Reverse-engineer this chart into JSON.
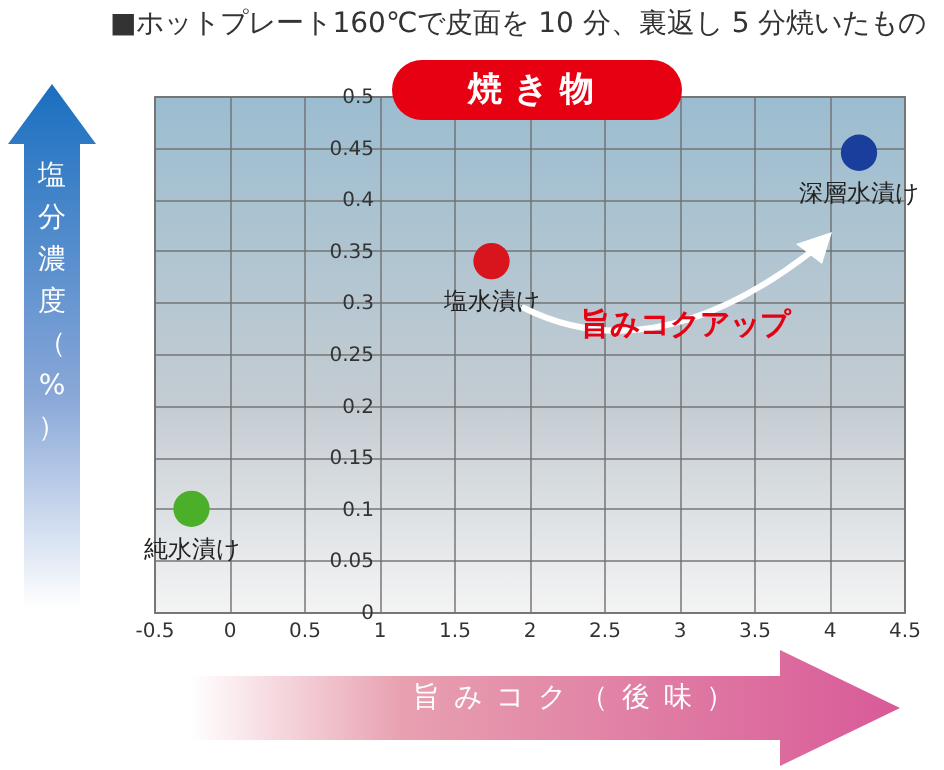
{
  "chart_data": {
    "type": "scatter",
    "title": "■ホットプレート160℃で皮面を 10 分、裏返し 5 分焼いたもの",
    "subtitle": "焼き物",
    "xlabel": "旨みコク（後味）",
    "ylabel": "塩分濃度（%）",
    "annotations": [
      "旨みコクアップ"
    ],
    "xlim": [
      -0.5,
      4.5
    ],
    "xticks": [
      -0.5,
      0,
      0.5,
      1,
      1.5,
      2,
      2.5,
      3,
      3.5,
      4,
      4.5
    ],
    "ylim": [
      0,
      0.5
    ],
    "yticks": [
      0,
      0.05,
      0.1,
      0.15,
      0.2,
      0.25,
      0.3,
      0.35,
      0.4,
      0.45,
      0.5
    ],
    "grid": true,
    "legend": false,
    "marker": "circle",
    "series": [
      {
        "name": "純水漬け",
        "color": "#4caf2a",
        "x": [
          -0.25
        ],
        "values": [
          0.1
        ]
      },
      {
        "name": "塩水漬け",
        "color": "#d8141c",
        "x": [
          1.75
        ],
        "values": [
          0.34
        ]
      },
      {
        "name": "深層水漬け",
        "color": "#1a3e9c",
        "x": [
          4.2
        ],
        "values": [
          0.445
        ]
      }
    ]
  }
}
